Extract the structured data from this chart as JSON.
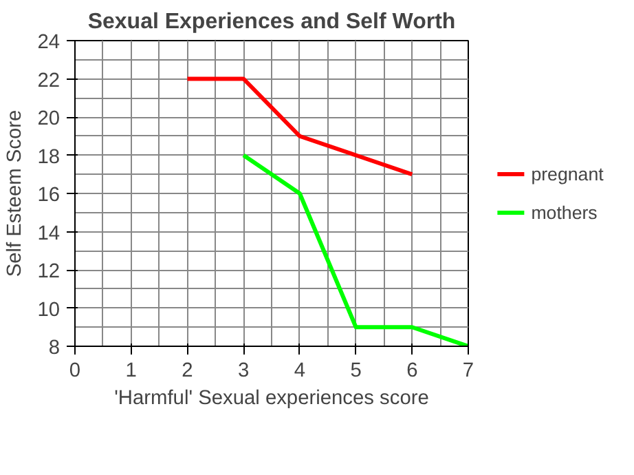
{
  "chart_data": {
    "type": "line",
    "title": "Sexual Experiences and Self Worth",
    "xlabel": "'Harmful' Sexual experiences score",
    "ylabel": "Self Esteem Score",
    "series": [
      {
        "name": "pregnant",
        "color": "#ff0000",
        "x": [
          2,
          3,
          4,
          5,
          6
        ],
        "values": [
          22,
          22,
          19,
          18,
          17
        ]
      },
      {
        "name": "mothers",
        "color": "#00ff00",
        "x": [
          3,
          4,
          5,
          6,
          7
        ],
        "values": [
          18,
          16,
          9,
          9,
          8
        ]
      }
    ],
    "xlim": [
      0,
      7
    ],
    "xticks": [
      0,
      1,
      2,
      3,
      4,
      5,
      6,
      7
    ],
    "ylim": [
      8,
      24
    ],
    "yticks": [
      8,
      10,
      12,
      14,
      16,
      18,
      20,
      22,
      24
    ],
    "grid": true,
    "legend": "right",
    "marker": "none",
    "line_style": "solid"
  }
}
